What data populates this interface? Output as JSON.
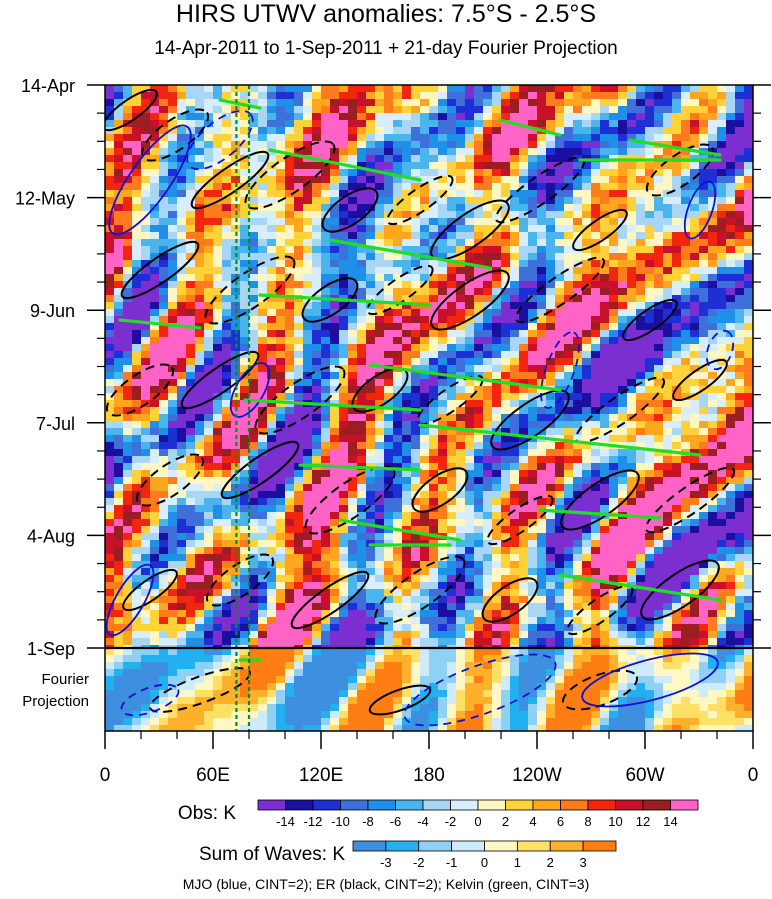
{
  "chart_data": {
    "type": "heatmap",
    "title": "HIRS UTWV anomalies: 7.5°S - 2.5°S",
    "subtitle": "14-Apr-2011 to 1-Sep-2011 + 21-day Fourier Projection",
    "y_tick_labels": [
      "14-Apr",
      "12-May",
      "9-Jun",
      "7-Jul",
      "4-Aug",
      "1-Sep"
    ],
    "y_projection_label": [
      "Fourier",
      "Projection"
    ],
    "x_tick_labels": [
      "0",
      "60E",
      "120E",
      "180",
      "120W",
      "60W",
      "0"
    ],
    "x_range_deg": [
      0,
      360
    ],
    "time_range_days": [
      0,
      140
    ],
    "projection_days": 21,
    "obs_colorbar": {
      "label": "Obs: K",
      "levels": [
        -14,
        -12,
        -10,
        -8,
        -6,
        -4,
        -2,
        0,
        2,
        4,
        6,
        8,
        10,
        12,
        14
      ],
      "colors": [
        "#7b2fd1",
        "#1a0f9e",
        "#1f2fd6",
        "#3f6fd9",
        "#1e90e8",
        "#49b5ec",
        "#a8d6f5",
        "#d9eefc",
        "#fff7c2",
        "#ffd23a",
        "#ffa61f",
        "#ff7b1b",
        "#f2260f",
        "#c8102a",
        "#9a1e22",
        "#ff63c6"
      ]
    },
    "waves_colorbar": {
      "label": "Sum of Waves: K",
      "levels": [
        -3,
        -2,
        -1,
        0,
        1,
        2,
        3
      ],
      "colors": [
        "#3f8fe0",
        "#23b0f0",
        "#8fd0f5",
        "#cfeafb",
        "#fff8c4",
        "#ffe066",
        "#ffb12b",
        "#ff7e14"
      ]
    },
    "vertical_lines_deg": [
      73,
      80
    ],
    "legend_note": "MJO (blue, CINT=2); ER (black, CINT=2); Kelvin (green, CINT=3)",
    "series": [
      {
        "name": "MJO",
        "color": "#1010d0",
        "cint": 2
      },
      {
        "name": "ER",
        "color": "#000000",
        "cint": 2
      },
      {
        "name": "Kelvin",
        "color": "#22dd22",
        "cint": 3
      }
    ]
  }
}
